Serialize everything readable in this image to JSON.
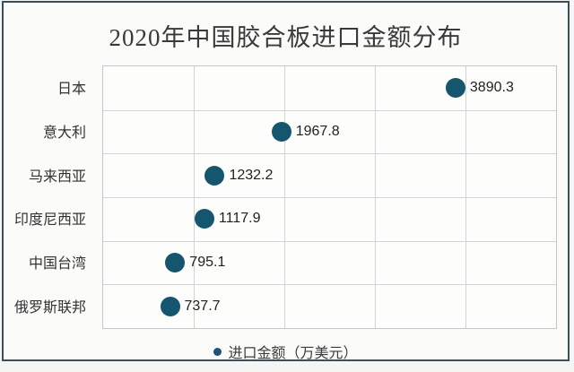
{
  "title": "2020年中国胶合板进口金额分布",
  "legend": {
    "label": "进口金额（万美元）",
    "position": "bottom"
  },
  "colors": {
    "marker": "#15566e",
    "legend_marker": "#1f5377",
    "frame_border": "#3a4f5c",
    "gridline": "#d3d3d7",
    "title_text": "#3a3a3a"
  },
  "chart_data": {
    "type": "scatter",
    "orientation": "horizontal",
    "title": "2020年中国胶合板进口金额分布",
    "categories": [
      "日本",
      "意大利",
      "马来西亚",
      "印度尼西亚",
      "中国台湾",
      "俄罗斯联邦"
    ],
    "values": [
      3890.3,
      1967.8,
      1232.2,
      1117.9,
      795.1,
      737.7
    ],
    "data_labels": [
      "3890.3",
      "1967.8",
      "1232.2",
      "1117.9",
      "795.1",
      "737.7"
    ],
    "xlabel": "",
    "ylabel": "",
    "xlim": [
      0,
      5000
    ],
    "gridline_interval": 1000,
    "grid": true,
    "legend_entries": [
      "进口金额（万美元）"
    ],
    "legend_position": "bottom"
  }
}
